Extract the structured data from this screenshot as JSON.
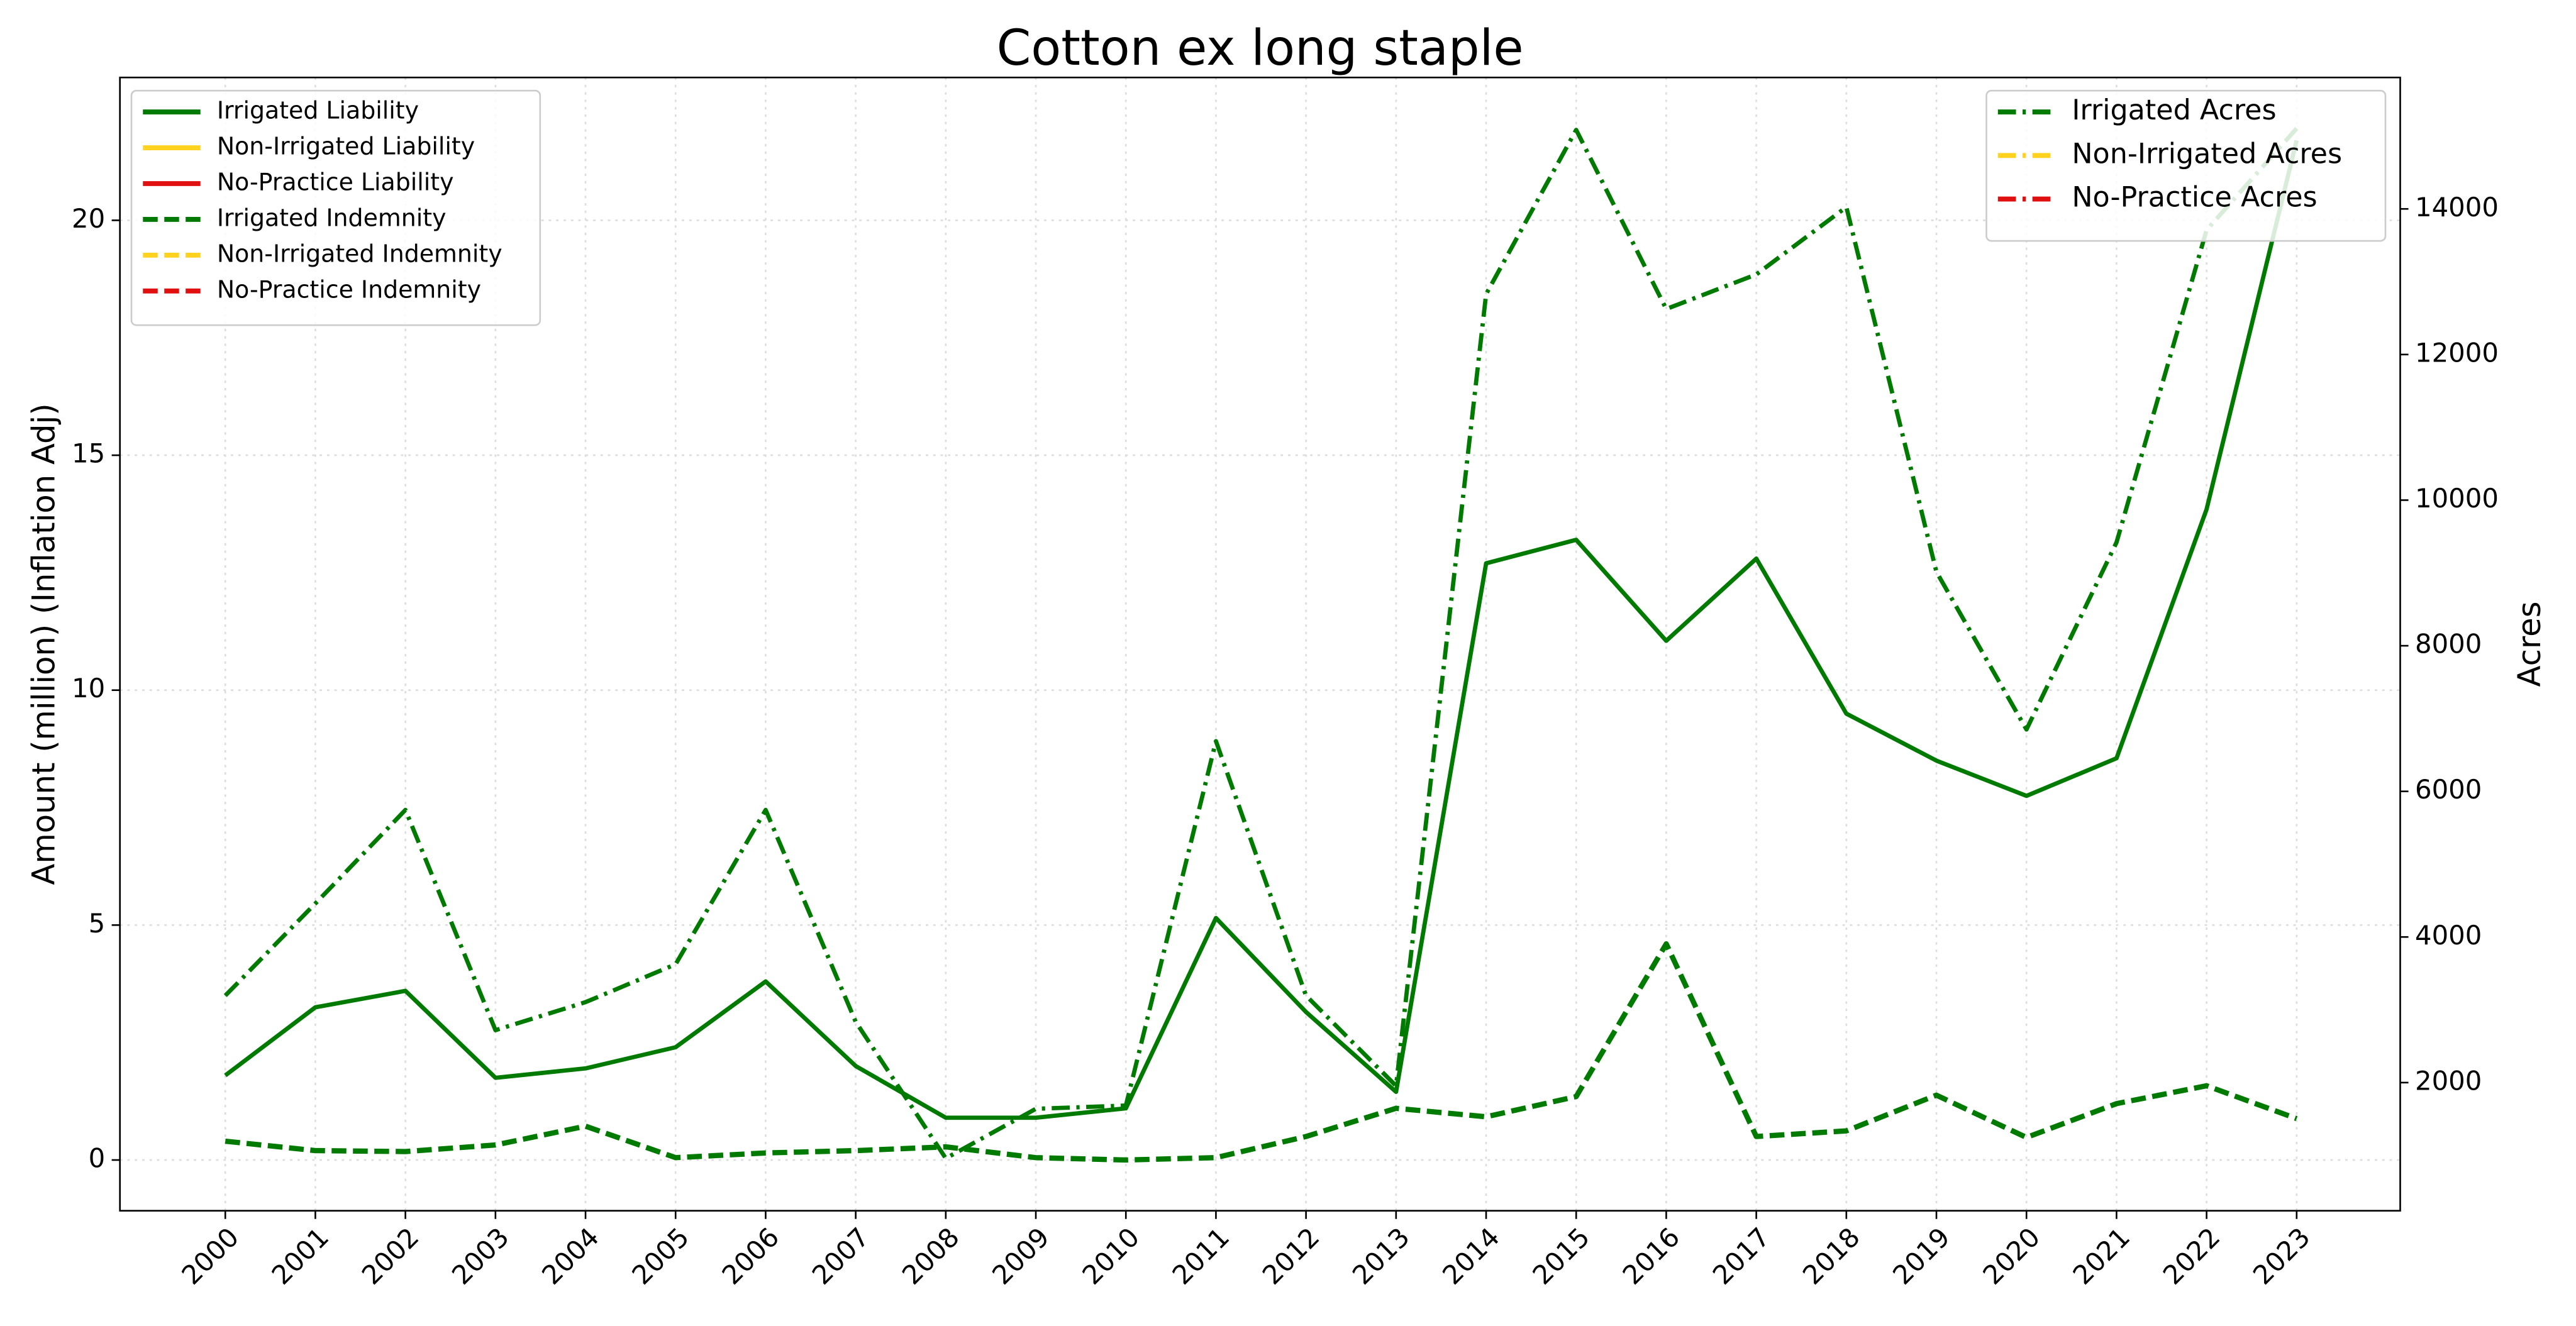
{
  "chart_data": {
    "type": "line",
    "title": "Cotton ex long staple",
    "ylabel": "Amount (million) (Inflation Adj)",
    "y2label": "Acres",
    "x": [
      2000,
      2001,
      2002,
      2003,
      2004,
      2005,
      2006,
      2007,
      2008,
      2009,
      2010,
      2011,
      2012,
      2013,
      2014,
      2015,
      2016,
      2017,
      2018,
      2019,
      2020,
      2021,
      2022,
      2023
    ],
    "xlim": [
      1998.83,
      2024.15
    ],
    "xticks": [
      2000,
      2001,
      2002,
      2003,
      2004,
      2005,
      2006,
      2007,
      2008,
      2009,
      2010,
      2011,
      2012,
      2013,
      2014,
      2015,
      2016,
      2017,
      2018,
      2019,
      2020,
      2021,
      2022,
      2023
    ],
    "ylim": [
      -1.08,
      23.04
    ],
    "yticks": [
      0,
      5,
      10,
      15,
      20
    ],
    "y2lim": [
      240,
      15805
    ],
    "y2ticks": [
      2000,
      4000,
      6000,
      8000,
      10000,
      12000,
      14000
    ],
    "grid": true,
    "legend": "upper left",
    "legend2": "upper right",
    "series": [
      {
        "name": "Irrigated Liability",
        "color": "#007a00",
        "style": "solid",
        "values": [
          1.8,
          3.25,
          3.6,
          1.75,
          1.95,
          2.4,
          3.8,
          2.0,
          0.9,
          0.9,
          1.1,
          5.15,
          3.15,
          1.45,
          12.7,
          13.2,
          11.05,
          12.8,
          9.5,
          8.5,
          7.75,
          8.55,
          13.85,
          21.7
        ]
      },
      {
        "name": "Non-Irrigated Liability",
        "color": "#ffd21f",
        "style": "solid",
        "values": [
          null,
          null,
          null,
          null,
          null,
          null,
          null,
          null,
          null,
          null,
          null,
          null,
          null,
          null,
          null,
          null,
          null,
          null,
          null,
          null,
          null,
          null,
          null,
          null
        ]
      },
      {
        "name": "No-Practice Liability",
        "color": "#e01010",
        "style": "solid",
        "values": [
          null,
          null,
          null,
          null,
          null,
          null,
          null,
          null,
          null,
          null,
          null,
          null,
          null,
          null,
          null,
          null,
          null,
          null,
          null,
          null,
          null,
          null,
          null,
          null
        ]
      },
      {
        "name": "Irrigated Indemnity",
        "color": "#007a00",
        "style": "dashed",
        "values": [
          0.4,
          0.2,
          0.18,
          0.32,
          0.72,
          0.05,
          0.15,
          0.2,
          0.28,
          0.05,
          0.0,
          0.05,
          0.5,
          1.1,
          0.92,
          1.35,
          4.6,
          0.5,
          0.62,
          1.38,
          0.48,
          1.2,
          1.58,
          0.88
        ]
      },
      {
        "name": "Non-Irrigated Indemnity",
        "color": "#ffd21f",
        "style": "dashed",
        "values": [
          null,
          null,
          null,
          null,
          null,
          null,
          null,
          null,
          null,
          null,
          null,
          null,
          null,
          null,
          null,
          null,
          null,
          null,
          null,
          null,
          null,
          null,
          null,
          null
        ]
      },
      {
        "name": "No-Practice Indemnity",
        "color": "#e01010",
        "style": "dashed",
        "values": [
          null,
          null,
          null,
          null,
          null,
          null,
          null,
          null,
          null,
          null,
          null,
          null,
          null,
          null,
          null,
          null,
          null,
          null,
          null,
          null,
          null,
          null,
          null,
          null
        ]
      },
      {
        "name": "Irrigated Acres",
        "color": "#007a00",
        "style": "dashdot",
        "axis": "y2",
        "values": [
          3195,
          4460,
          5745,
          2720,
          3105,
          3625,
          5745,
          2835,
          960,
          1640,
          1685,
          6690,
          3195,
          1955,
          12830,
          15085,
          12625,
          13100,
          14025,
          9015,
          6850,
          9420,
          13710,
          15105
        ]
      },
      {
        "name": "Non-Irrigated Acres",
        "color": "#ffd21f",
        "style": "dashdot",
        "axis": "y2",
        "values": [
          null,
          null,
          null,
          null,
          null,
          null,
          null,
          null,
          null,
          null,
          null,
          null,
          null,
          null,
          null,
          null,
          null,
          null,
          null,
          null,
          null,
          null,
          null,
          null
        ]
      },
      {
        "name": "No-Practice Acres",
        "color": "#e01010",
        "style": "dashdot",
        "axis": "y2",
        "values": [
          null,
          null,
          null,
          null,
          null,
          null,
          null,
          null,
          null,
          null,
          null,
          null,
          null,
          null,
          null,
          null,
          null,
          null,
          null,
          null,
          null,
          null,
          null,
          null
        ]
      }
    ]
  }
}
